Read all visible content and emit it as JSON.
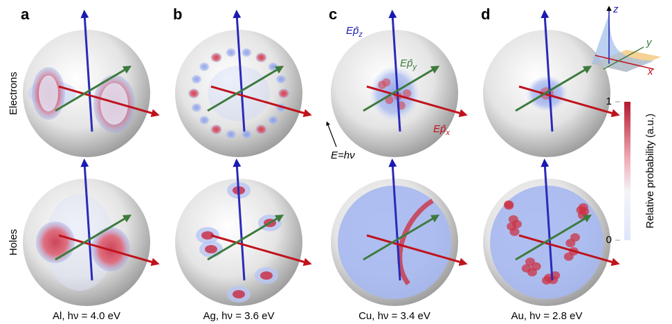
{
  "panels": [
    {
      "label": "a",
      "caption": "Al, hν = 4.0 eV"
    },
    {
      "label": "b",
      "caption": "Ag, hν = 3.6 eV"
    },
    {
      "label": "c",
      "caption": "Cu, hν = 3.4 eV"
    },
    {
      "label": "d",
      "caption": "Au, hν = 2.8 eV"
    }
  ],
  "rows": [
    "Electrons",
    "Holes"
  ],
  "axis_labels": {
    "z": {
      "main": "Ep̂",
      "sub": "z"
    },
    "y": {
      "main": "Ep̂",
      "sub": "y"
    },
    "x": {
      "main": "Ep̂",
      "sub": "x"
    }
  },
  "sphere_label": "E=hν",
  "inset_axes": {
    "x": "x",
    "y": "y",
    "z": "z"
  },
  "colorbar": {
    "label": "Relative probability (a.u.)",
    "ticks": [
      0,
      1
    ],
    "lim": [
      0,
      1
    ]
  }
}
